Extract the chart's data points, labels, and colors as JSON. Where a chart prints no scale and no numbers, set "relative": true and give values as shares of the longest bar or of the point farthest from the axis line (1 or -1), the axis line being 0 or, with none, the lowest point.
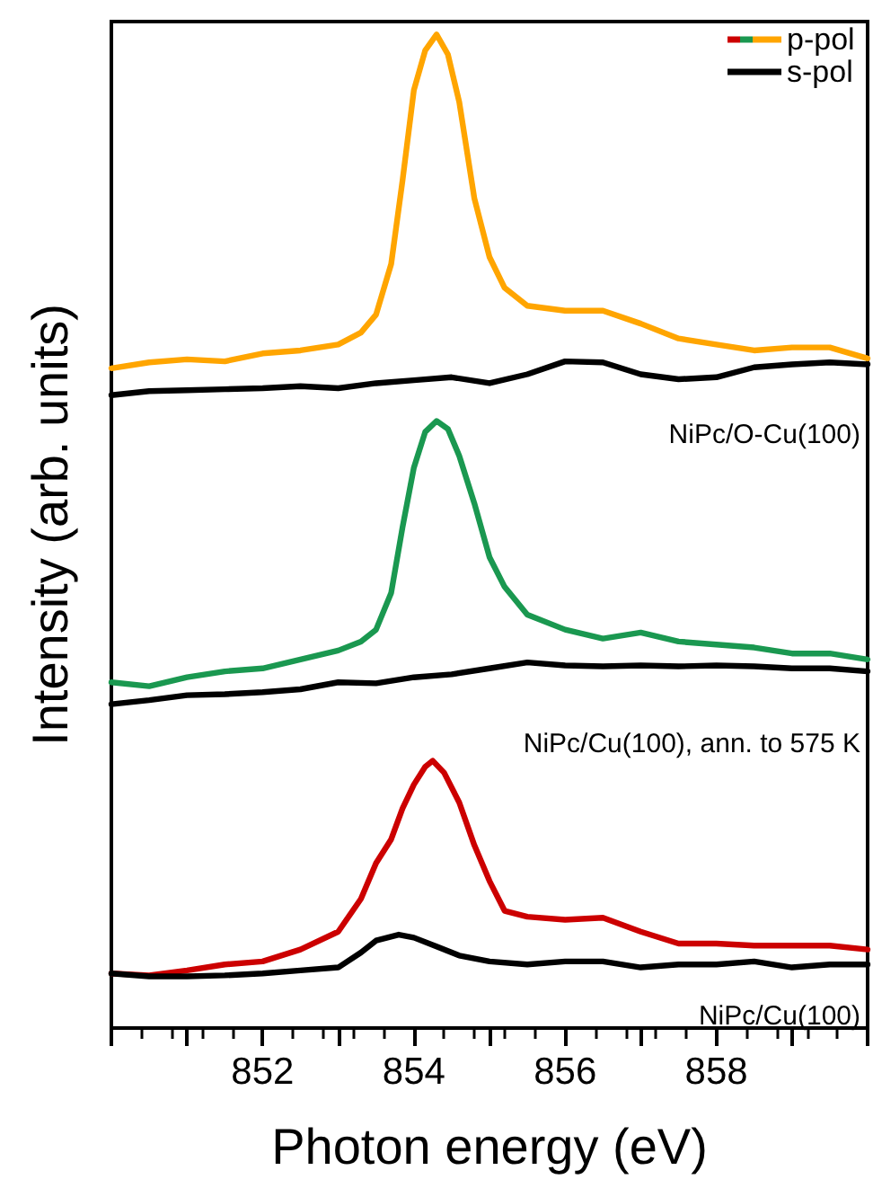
{
  "chart_data": {
    "type": "line",
    "relative": true,
    "xlabel": "Photon energy (eV)",
    "ylabel": "Intensity (arb. units)",
    "xlim": [
      850,
      860
    ],
    "xticks": [
      {
        "value": 850,
        "label": null
      },
      {
        "value": 851,
        "label": null
      },
      852,
      {
        "value": 853,
        "label": null
      },
      854,
      {
        "value": 855,
        "label": null
      },
      856,
      {
        "value": 857,
        "label": null
      },
      858,
      {
        "value": 859,
        "label": null
      },
      {
        "value": 860,
        "label": null
      }
    ],
    "legend": "top right",
    "grid": false,
    "marker": "none",
    "line_style": "solid",
    "series": [
      {
        "name": "p-pol",
        "color": "#ffa500",
        "x": [
          850,
          850.5,
          851,
          851.5,
          852,
          852.5,
          853,
          853.3,
          853.5,
          853.7,
          853.85,
          854,
          854.15,
          854.3,
          854.45,
          854.6,
          854.8,
          855,
          855.2,
          855.5,
          856,
          856.5,
          857,
          857.5,
          858,
          858.5,
          859,
          859.5,
          860
        ],
        "values": [
          0.664,
          0.67,
          0.673,
          0.671,
          0.679,
          0.682,
          0.688,
          0.7,
          0.718,
          0.769,
          0.853,
          0.944,
          0.984,
          1.0,
          0.98,
          0.932,
          0.835,
          0.776,
          0.745,
          0.727,
          0.722,
          0.722,
          0.709,
          0.694,
          0.688,
          0.682,
          0.685,
          0.685,
          0.674
        ]
      },
      {
        "name": "s-pol",
        "color": "#000000",
        "x": [
          850,
          850.5,
          851,
          851.5,
          852,
          852.5,
          853,
          853.5,
          854,
          854.5,
          855,
          855.5,
          856,
          856.5,
          857,
          857.5,
          858,
          858.5,
          859,
          859.5,
          860
        ],
        "values": [
          0.637,
          0.641,
          0.642,
          0.643,
          0.644,
          0.646,
          0.644,
          0.649,
          0.652,
          0.655,
          0.649,
          0.658,
          0.671,
          0.67,
          0.658,
          0.653,
          0.655,
          0.665,
          0.668,
          0.67,
          0.668
        ]
      },
      {
        "color": "#1a9850",
        "x": [
          850,
          850.5,
          851,
          851.5,
          852,
          852.5,
          853,
          853.3,
          853.5,
          853.7,
          853.85,
          854,
          854.15,
          854.3,
          854.45,
          854.6,
          854.8,
          855,
          855.2,
          855.5,
          856,
          856.5,
          857,
          857.5,
          858,
          858.5,
          859,
          859.5,
          860
        ],
        "values": [
          0.348,
          0.344,
          0.353,
          0.359,
          0.362,
          0.371,
          0.38,
          0.389,
          0.401,
          0.438,
          0.504,
          0.564,
          0.6,
          0.611,
          0.603,
          0.576,
          0.528,
          0.474,
          0.444,
          0.416,
          0.401,
          0.392,
          0.398,
          0.389,
          0.386,
          0.383,
          0.377,
          0.377,
          0.371
        ]
      },
      {
        "color": "#000000",
        "x": [
          850,
          850.5,
          851,
          851.5,
          852,
          852.5,
          853,
          853.5,
          854,
          854.5,
          855,
          855.5,
          856,
          856.5,
          857,
          857.5,
          858,
          858.5,
          859,
          859.5,
          860
        ],
        "values": [
          0.326,
          0.33,
          0.335,
          0.336,
          0.338,
          0.341,
          0.348,
          0.347,
          0.353,
          0.356,
          0.362,
          0.368,
          0.365,
          0.364,
          0.365,
          0.364,
          0.365,
          0.364,
          0.362,
          0.362,
          0.359
        ]
      },
      {
        "color": "#cc0000",
        "x": [
          850,
          850.5,
          851,
          851.5,
          852,
          852.5,
          853,
          853.3,
          853.5,
          853.7,
          853.85,
          854,
          854.15,
          854.25,
          854.4,
          854.6,
          854.8,
          855,
          855.2,
          855.5,
          856,
          856.5,
          857,
          857.5,
          858,
          858.5,
          859,
          859.5,
          860
        ],
        "values": [
          0.055,
          0.053,
          0.058,
          0.064,
          0.067,
          0.079,
          0.097,
          0.13,
          0.166,
          0.19,
          0.221,
          0.245,
          0.263,
          0.269,
          0.257,
          0.227,
          0.184,
          0.148,
          0.118,
          0.112,
          0.109,
          0.111,
          0.097,
          0.085,
          0.085,
          0.083,
          0.083,
          0.083,
          0.079
        ]
      },
      {
        "color": "#000000",
        "x": [
          850,
          850.5,
          851,
          851.5,
          852,
          852.5,
          853,
          853.3,
          853.5,
          853.8,
          854,
          854.3,
          854.6,
          855,
          855.5,
          856,
          856.5,
          857,
          857.5,
          858,
          858.5,
          859,
          859.5,
          860
        ],
        "values": [
          0.055,
          0.052,
          0.052,
          0.053,
          0.055,
          0.058,
          0.061,
          0.076,
          0.088,
          0.094,
          0.091,
          0.082,
          0.073,
          0.067,
          0.064,
          0.067,
          0.067,
          0.061,
          0.064,
          0.064,
          0.067,
          0.061,
          0.064,
          0.064
        ]
      }
    ],
    "annotations": [
      "NiPc/O-Cu(100)",
      "NiPc/Cu(100), ann. to 575 K",
      "NiPc/Cu(100)"
    ]
  }
}
